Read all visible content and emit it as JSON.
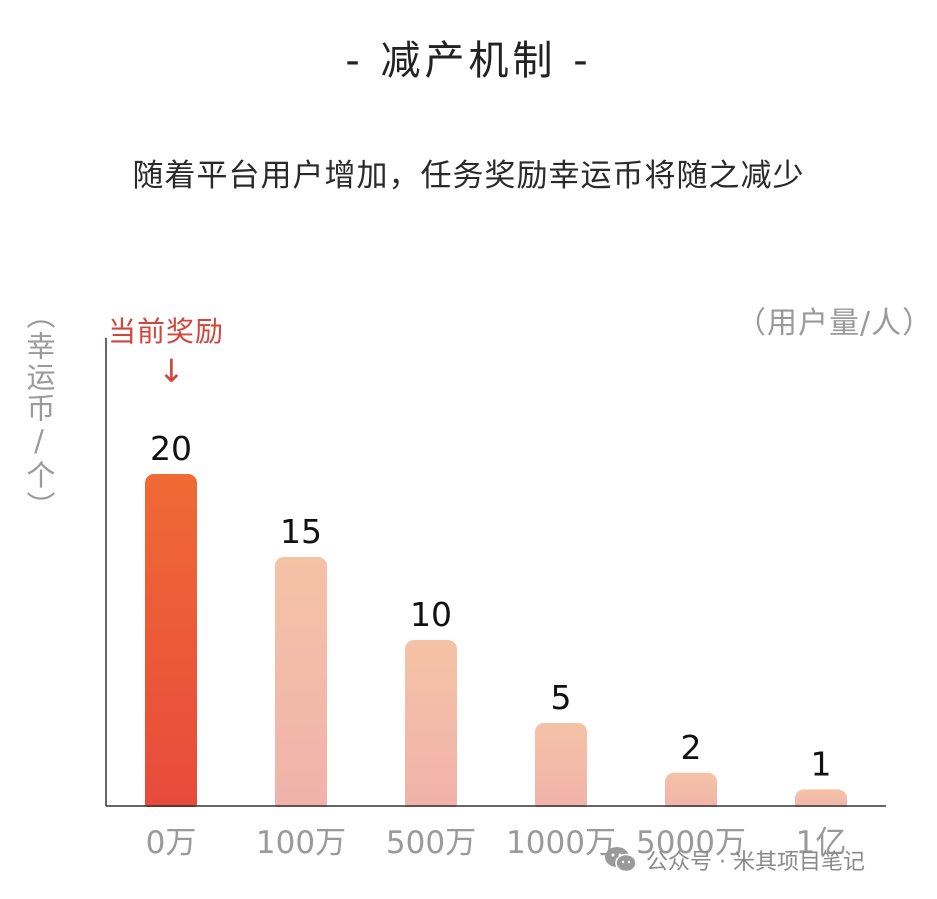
{
  "title": "- 减产机制 -",
  "subtitle": "随着平台用户增加，任务奖励幸运币将随之减少",
  "current_reward_label": "当前奖励",
  "current_reward_arrow": "↓",
  "watermark": "公众号 · 米其项目笔记",
  "colors": {
    "highlight_top": "#ef6a35",
    "highlight_bottom": "#e84a3c",
    "bar_top": "#f5c2a6",
    "bar_bottom": "#f0b2aa",
    "axis": "#333333",
    "tick_text": "#9a9a9a",
    "value_text": "#111111"
  },
  "chart_data": {
    "type": "bar",
    "ylabel": "（幸运币/个）",
    "xlabel": "（用户量/人）",
    "categories": [
      "0万",
      "100万",
      "500万",
      "1000万",
      "5000万",
      "1亿"
    ],
    "values": [
      20,
      15,
      10,
      5,
      2,
      1
    ],
    "highlight_index": 0,
    "ylim": [
      0,
      25
    ],
    "grid": false,
    "legend": "none"
  }
}
